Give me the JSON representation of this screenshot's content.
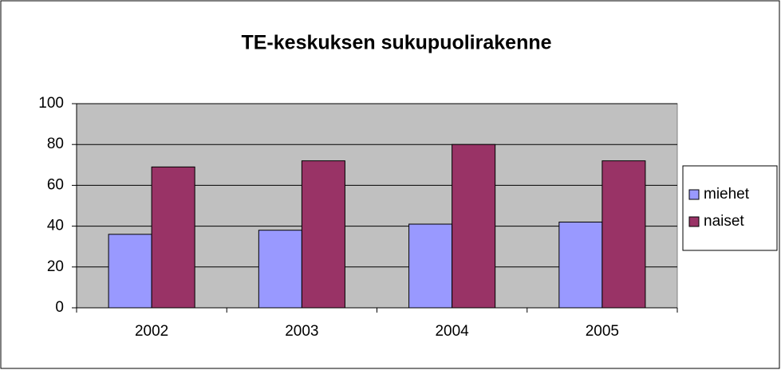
{
  "chart_data": {
    "type": "bar",
    "title": "TE-keskuksen sukupuolirakenne",
    "categories": [
      "2002",
      "2003",
      "2004",
      "2005"
    ],
    "series": [
      {
        "name": "miehet",
        "color": "#9999ff",
        "values": [
          36,
          38,
          41,
          42
        ]
      },
      {
        "name": "naiset",
        "color": "#993366",
        "values": [
          69,
          72,
          80,
          72
        ]
      }
    ],
    "ylim": [
      0,
      100
    ],
    "yticks": [
      0,
      20,
      40,
      60,
      80,
      100
    ],
    "grid": true,
    "legend": "right"
  }
}
